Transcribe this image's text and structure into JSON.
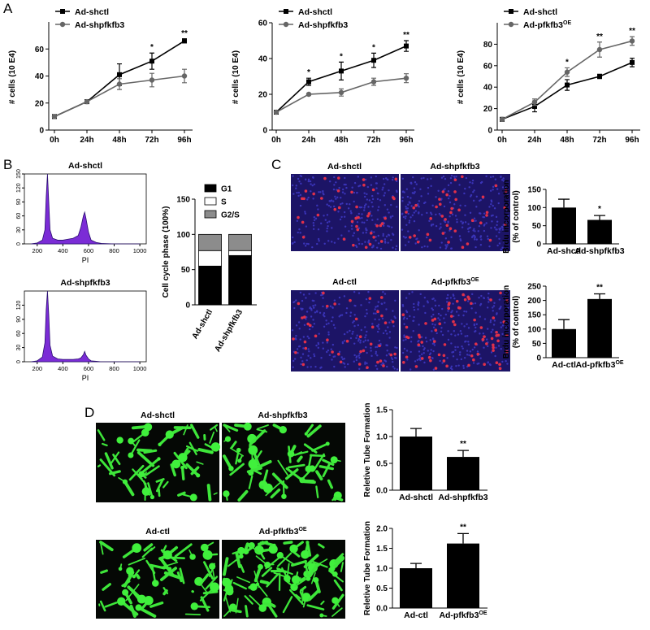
{
  "panels": [
    "A",
    "B",
    "C",
    "D"
  ],
  "panel_c_images": [
    {
      "text": "Ad-shctl"
    },
    {
      "text": "Ad-shpfkfb3"
    },
    {
      "text": "Ad-ctl"
    },
    {
      "text": "Ad-pfkfb3",
      "superscript": "OE"
    }
  ],
  "panel_d_images": [
    {
      "text": "Ad-shctl"
    },
    {
      "text": "Ad-shpfkfb3"
    },
    {
      "text": "Ad-ctl"
    },
    {
      "text": "Ad-pfkfb3",
      "superscript": "OE"
    }
  ],
  "chart_data": [
    {
      "type": "line",
      "ylabel": "# cells (10 E4)",
      "categories": [
        "0h",
        "24h",
        "48h",
        "72h",
        "96h"
      ],
      "series": [
        {
          "name": "Ad-shctl",
          "color": "#000000",
          "values": [
            10,
            21,
            41,
            51,
            66
          ],
          "errors": [
            0.5,
            1,
            8,
            6,
            1.5
          ]
        },
        {
          "name": "Ad-shpfkfb3",
          "color": "#666666",
          "values": [
            10,
            21,
            34,
            37,
            40
          ],
          "errors": [
            0.5,
            1,
            4,
            5,
            5
          ]
        }
      ],
      "annotations": [
        null,
        null,
        null,
        "*",
        "**"
      ],
      "ylim": [
        0,
        80
      ],
      "yticks": [
        0,
        20,
        40,
        60
      ]
    },
    {
      "type": "line",
      "ylabel": "# cells (10 E4)",
      "categories": [
        "0h",
        "24h",
        "48h",
        "72h",
        "96h"
      ],
      "series": [
        {
          "name": "Ad-shctl",
          "color": "#000000",
          "values": [
            10,
            27,
            33,
            39,
            47
          ],
          "errors": [
            0.5,
            2,
            5,
            4,
            3
          ]
        },
        {
          "name": "Ad-shpfkfb3",
          "color": "#666666",
          "values": [
            10,
            20,
            21,
            27,
            29
          ],
          "errors": [
            0.5,
            0.5,
            2,
            2,
            2.5
          ]
        }
      ],
      "annotations": [
        null,
        "*",
        "*",
        "*",
        "**"
      ],
      "ylim": [
        0,
        60
      ],
      "yticks": [
        0,
        20,
        40,
        60
      ]
    },
    {
      "type": "line",
      "ylabel": "# cells (10 E4)",
      "categories": [
        "0h",
        "24h",
        "48h",
        "72h",
        "96h"
      ],
      "series": [
        {
          "name": "Ad-shctl",
          "color": "#000000",
          "values": [
            10,
            22,
            42,
            50,
            63
          ],
          "errors": [
            0.5,
            5,
            5,
            2,
            4
          ]
        },
        {
          "name": "Ad-pfkfb3",
          "superscript": "OE",
          "color": "#666666",
          "values": [
            10,
            26,
            54,
            75,
            83
          ],
          "errors": [
            0.5,
            3,
            4,
            7,
            4
          ]
        }
      ],
      "annotations": [
        null,
        null,
        "*",
        "**",
        "**"
      ],
      "ylim": [
        0,
        100
      ],
      "yticks": [
        0,
        20,
        40,
        60,
        80
      ]
    },
    {
      "type": "area",
      "title": "Ad-shctl",
      "xlabel": "PI",
      "x": [
        150,
        200,
        240,
        260,
        270,
        280,
        290,
        300,
        320,
        360,
        400,
        440,
        480,
        520,
        540,
        560,
        570,
        580,
        600,
        620,
        660,
        700,
        800,
        1000
      ],
      "series": [
        {
          "color": "#7b2cd6",
          "values": [
            0,
            2,
            8,
            30,
            100,
            150,
            90,
            30,
            12,
            8,
            8,
            10,
            12,
            18,
            35,
            60,
            68,
            55,
            25,
            8,
            3,
            1,
            0,
            0
          ]
        }
      ],
      "xlim": [
        100,
        1050
      ],
      "xticks": [
        200,
        400,
        600,
        800,
        1000
      ],
      "ylim": [
        0,
        150
      ],
      "yticks": [
        0,
        30,
        60,
        90,
        120,
        150
      ]
    },
    {
      "type": "area",
      "title": "Ad-shpfkfb3",
      "xlabel": "PI",
      "x": [
        150,
        200,
        240,
        260,
        270,
        280,
        290,
        300,
        320,
        360,
        400,
        440,
        480,
        520,
        540,
        560,
        570,
        580,
        600,
        620,
        660,
        700,
        800,
        1000
      ],
      "series": [
        {
          "color": "#7b2cd6",
          "values": [
            0,
            2,
            10,
            40,
            110,
            150,
            100,
            35,
            12,
            6,
            5,
            5,
            5,
            6,
            8,
            15,
            22,
            14,
            6,
            2,
            1,
            0,
            0,
            0
          ]
        }
      ],
      "xlim": [
        100,
        1050
      ],
      "xticks": [
        200,
        400,
        600,
        800,
        1000
      ],
      "ylim": [
        0,
        150
      ],
      "yticks": [
        0,
        30,
        60,
        90,
        120
      ]
    },
    {
      "type": "stacked_bar",
      "ylabel": "Cell cycle phase (100%)",
      "categories": [
        "Ad-shctl",
        "Ad-shpfkfb3"
      ],
      "series": [
        {
          "name": "G1",
          "color": "#000000",
          "values": [
            55,
            70
          ]
        },
        {
          "name": "S",
          "color": "#ffffff",
          "values": [
            22,
            7
          ]
        },
        {
          "name": "G2/S",
          "color": "#8c8c8c",
          "values": [
            23,
            23
          ]
        }
      ],
      "ylim": [
        0,
        150
      ],
      "yticks": [
        0,
        50,
        100,
        150
      ]
    },
    {
      "type": "bar",
      "ylabel": [
        "Brdu incorporation",
        "(% of control)"
      ],
      "categories": [
        "Ad-shctl",
        "Ad-shpfkfb3"
      ],
      "values": [
        100,
        66
      ],
      "errors": [
        23,
        12
      ],
      "color": "#000000",
      "annotations": [
        null,
        "*"
      ],
      "ylim": [
        0,
        150
      ],
      "yticks": [
        0,
        50,
        100,
        150
      ]
    },
    {
      "type": "bar",
      "ylabel": [
        "Brdu incorporation",
        "(% of control)"
      ],
      "categories": [
        "Ad-ctl",
        "Ad-pfkfb3"
      ],
      "category_superscripts": [
        null,
        "OE"
      ],
      "values": [
        100,
        205
      ],
      "errors": [
        33,
        18
      ],
      "color": "#000000",
      "annotations": [
        null,
        "**"
      ],
      "ylim": [
        0,
        250
      ],
      "yticks": [
        0,
        50,
        100,
        150,
        200,
        250
      ]
    },
    {
      "type": "bar",
      "ylabel": [
        "Reletive Tube Formation"
      ],
      "categories": [
        "Ad-shctl",
        "Ad-shpfkfb3"
      ],
      "values": [
        1.0,
        0.62
      ],
      "errors": [
        0.15,
        0.12
      ],
      "color": "#000000",
      "annotations": [
        null,
        "**"
      ],
      "ylim": [
        0,
        1.5
      ],
      "yticks": [
        {
          "value": 0,
          "label": "0.0"
        },
        {
          "value": 0.5,
          "label": "0.5"
        },
        {
          "value": 1,
          "label": "1.0"
        },
        {
          "value": 1.5,
          "label": "1.5"
        }
      ]
    },
    {
      "type": "bar",
      "ylabel": [
        "Reletive Tube Formation"
      ],
      "categories": [
        "Ad-ctl",
        "Ad-pfkfb3"
      ],
      "category_superscripts": [
        null,
        "OE"
      ],
      "values": [
        1.0,
        1.62
      ],
      "errors": [
        0.12,
        0.25
      ],
      "color": "#000000",
      "annotations": [
        null,
        "**"
      ],
      "ylim": [
        0,
        2.0
      ],
      "yticks": [
        {
          "value": 0,
          "label": "0.0"
        },
        {
          "value": 0.5,
          "label": "0.5"
        },
        {
          "value": 1,
          "label": "1.0"
        },
        {
          "value": 1.5,
          "label": "1.5"
        },
        {
          "value": 2,
          "label": "2.0"
        }
      ]
    }
  ]
}
